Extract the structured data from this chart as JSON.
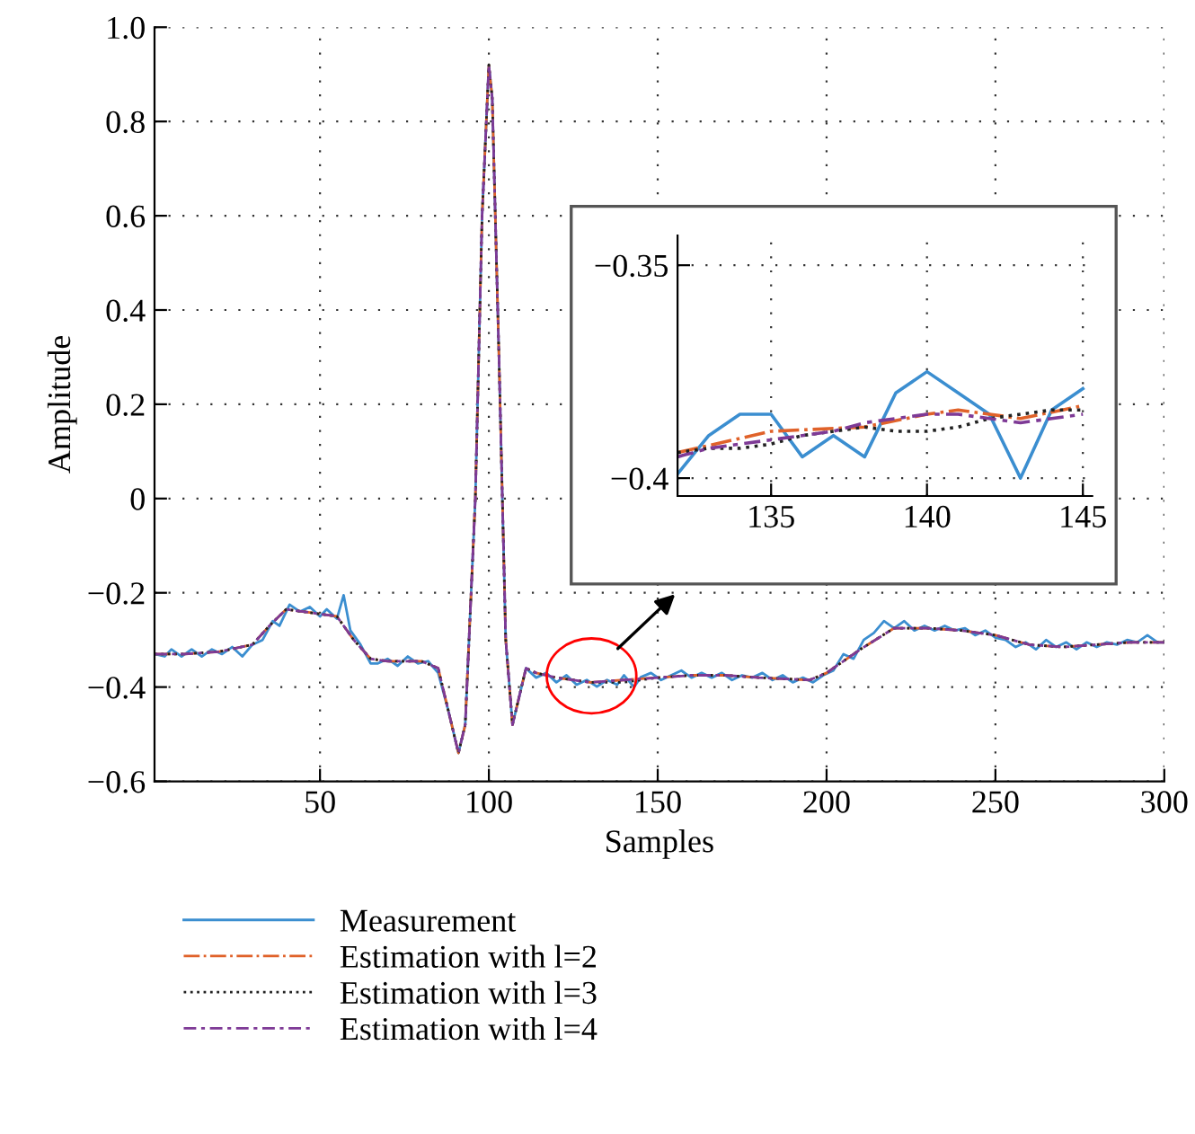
{
  "chart_data": [
    {
      "type": "line",
      "xlabel": "Samples",
      "ylabel": "Amplitude",
      "xlim": [
        1,
        300
      ],
      "ylim": [
        -0.6,
        1.0
      ],
      "xticks": [
        50,
        100,
        150,
        200,
        250,
        300
      ],
      "yticks": [
        {
          "value": -0.6,
          "label": "−0.6"
        },
        {
          "value": -0.4,
          "label": "−0.4"
        },
        {
          "value": -0.2,
          "label": "−0.2"
        },
        0,
        0.2,
        0.4,
        0.6,
        0.8,
        {
          "value": 1.0,
          "label": "1.0"
        }
      ],
      "grid": true,
      "legend": "bottom",
      "series": [
        {
          "name": "Measurement",
          "color": "#3b8ed0",
          "line_style": "solid",
          "x": [
            1,
            4,
            6,
            9,
            12,
            15,
            18,
            21,
            24,
            27,
            30,
            33,
            36,
            38,
            41,
            44,
            47,
            50,
            52,
            55,
            57,
            59,
            62,
            65,
            67,
            70,
            73,
            76,
            79,
            82,
            85,
            88,
            91,
            93,
            96,
            98,
            100,
            101,
            103,
            105,
            107,
            109,
            111,
            114,
            117,
            120,
            123,
            126,
            129,
            132,
            135,
            138,
            140,
            143,
            145,
            148,
            151,
            154,
            157,
            160,
            163,
            166,
            169,
            172,
            175,
            178,
            181,
            184,
            187,
            190,
            193,
            196,
            199,
            202,
            205,
            208,
            211,
            214,
            217,
            220,
            223,
            226,
            229,
            232,
            235,
            238,
            241,
            244,
            247,
            250,
            253,
            256,
            259,
            262,
            265,
            268,
            271,
            274,
            277,
            280,
            283,
            286,
            289,
            292,
            295,
            298,
            300
          ],
          "values": [
            -0.33,
            -0.335,
            -0.32,
            -0.335,
            -0.32,
            -0.335,
            -0.32,
            -0.33,
            -0.315,
            -0.335,
            -0.31,
            -0.3,
            -0.26,
            -0.27,
            -0.225,
            -0.24,
            -0.23,
            -0.25,
            -0.235,
            -0.255,
            -0.205,
            -0.28,
            -0.31,
            -0.35,
            -0.35,
            -0.34,
            -0.355,
            -0.335,
            -0.35,
            -0.345,
            -0.37,
            -0.45,
            -0.54,
            -0.48,
            0.0,
            0.6,
            0.92,
            0.85,
            0.3,
            -0.3,
            -0.48,
            -0.42,
            -0.36,
            -0.38,
            -0.37,
            -0.39,
            -0.375,
            -0.395,
            -0.385,
            -0.399,
            -0.385,
            -0.395,
            -0.375,
            -0.4,
            -0.379,
            -0.37,
            -0.385,
            -0.375,
            -0.365,
            -0.38,
            -0.37,
            -0.38,
            -0.37,
            -0.385,
            -0.375,
            -0.38,
            -0.37,
            -0.385,
            -0.375,
            -0.39,
            -0.38,
            -0.39,
            -0.375,
            -0.365,
            -0.33,
            -0.34,
            -0.3,
            -0.285,
            -0.26,
            -0.275,
            -0.26,
            -0.28,
            -0.27,
            -0.28,
            -0.27,
            -0.28,
            -0.275,
            -0.29,
            -0.28,
            -0.295,
            -0.3,
            -0.315,
            -0.305,
            -0.32,
            -0.3,
            -0.315,
            -0.305,
            -0.32,
            -0.305,
            -0.315,
            -0.305,
            -0.31,
            -0.3,
            -0.305,
            -0.29,
            -0.305,
            -0.305
          ]
        },
        {
          "name": "Estimation with l=2",
          "color": "#e0622a",
          "line_style": "dashdot",
          "x": [
            1,
            10,
            20,
            30,
            35,
            40,
            45,
            50,
            55,
            60,
            65,
            70,
            80,
            85,
            88,
            91,
            93,
            96,
            98,
            100,
            101,
            103,
            105,
            107,
            109,
            111,
            114,
            120,
            130,
            140,
            150,
            160,
            170,
            180,
            195,
            200,
            210,
            220,
            230,
            240,
            250,
            260,
            270,
            280,
            290,
            300
          ],
          "values": [
            -0.33,
            -0.33,
            -0.325,
            -0.31,
            -0.27,
            -0.235,
            -0.24,
            -0.245,
            -0.25,
            -0.3,
            -0.34,
            -0.345,
            -0.345,
            -0.36,
            -0.45,
            -0.54,
            -0.48,
            0.0,
            0.6,
            0.92,
            0.85,
            0.3,
            -0.3,
            -0.48,
            -0.42,
            -0.36,
            -0.37,
            -0.38,
            -0.39,
            -0.385,
            -0.38,
            -0.375,
            -0.375,
            -0.38,
            -0.385,
            -0.37,
            -0.32,
            -0.275,
            -0.275,
            -0.28,
            -0.29,
            -0.31,
            -0.315,
            -0.31,
            -0.305,
            -0.305
          ]
        },
        {
          "name": "Estimation with l=3",
          "color": "#222222",
          "line_style": "dotted",
          "x": [
            1,
            10,
            20,
            30,
            35,
            40,
            45,
            50,
            55,
            60,
            65,
            70,
            80,
            85,
            88,
            91,
            93,
            96,
            98,
            100,
            101,
            103,
            105,
            107,
            109,
            111,
            114,
            120,
            130,
            140,
            150,
            160,
            170,
            180,
            195,
            200,
            210,
            220,
            230,
            240,
            250,
            260,
            270,
            280,
            290,
            300
          ],
          "values": [
            -0.33,
            -0.33,
            -0.325,
            -0.31,
            -0.27,
            -0.235,
            -0.24,
            -0.245,
            -0.25,
            -0.3,
            -0.34,
            -0.345,
            -0.345,
            -0.36,
            -0.45,
            -0.54,
            -0.48,
            0.0,
            0.6,
            0.92,
            0.85,
            0.3,
            -0.3,
            -0.48,
            -0.42,
            -0.36,
            -0.37,
            -0.38,
            -0.39,
            -0.39,
            -0.38,
            -0.375,
            -0.375,
            -0.38,
            -0.385,
            -0.37,
            -0.32,
            -0.275,
            -0.275,
            -0.28,
            -0.29,
            -0.31,
            -0.315,
            -0.31,
            -0.305,
            -0.305
          ]
        },
        {
          "name": "Estimation with l=4",
          "color": "#7e3a96",
          "line_style": "dashed",
          "x": [
            1,
            10,
            20,
            30,
            35,
            40,
            45,
            50,
            55,
            60,
            65,
            70,
            80,
            85,
            88,
            91,
            93,
            96,
            98,
            100,
            101,
            103,
            105,
            107,
            109,
            111,
            114,
            120,
            130,
            140,
            150,
            160,
            170,
            180,
            195,
            200,
            210,
            220,
            230,
            240,
            250,
            260,
            270,
            280,
            290,
            300
          ],
          "values": [
            -0.33,
            -0.33,
            -0.325,
            -0.31,
            -0.27,
            -0.235,
            -0.24,
            -0.245,
            -0.25,
            -0.3,
            -0.34,
            -0.345,
            -0.345,
            -0.36,
            -0.45,
            -0.54,
            -0.48,
            0.0,
            0.6,
            0.92,
            0.85,
            0.3,
            -0.3,
            -0.48,
            -0.42,
            -0.36,
            -0.37,
            -0.38,
            -0.39,
            -0.385,
            -0.38,
            -0.375,
            -0.375,
            -0.38,
            -0.385,
            -0.37,
            -0.32,
            -0.275,
            -0.275,
            -0.28,
            -0.29,
            -0.31,
            -0.315,
            -0.31,
            -0.305,
            -0.305
          ]
        }
      ]
    },
    {
      "type": "line",
      "xlim": [
        132,
        145.3
      ],
      "ylim": [
        -0.4042,
        -0.343
      ],
      "xticks": [
        135,
        140,
        145
      ],
      "yticks": [
        {
          "value": -0.4,
          "label": "−0.4"
        },
        {
          "value": -0.35,
          "label": "−0.35"
        }
      ],
      "grid": true,
      "x": [
        132,
        133,
        134,
        135,
        136,
        137,
        138,
        139,
        140,
        141,
        142,
        143,
        144,
        145
      ],
      "series": [
        {
          "color": "#3b8ed0",
          "line_style": "solid",
          "values": [
            -0.399,
            -0.39,
            -0.385,
            -0.385,
            -0.395,
            -0.39,
            -0.395,
            -0.38,
            -0.375,
            -0.38,
            -0.385,
            -0.4,
            -0.384,
            -0.379
          ]
        },
        {
          "color": "#e0622a",
          "line_style": "dashdot",
          "x": [
            132,
            135,
            138,
            140,
            141,
            143,
            145
          ],
          "values": [
            -0.394,
            -0.389,
            -0.388,
            -0.385,
            -0.384,
            -0.386,
            -0.383
          ]
        },
        {
          "color": "#222222",
          "line_style": "dotted",
          "values": [
            -0.394,
            -0.393,
            -0.393,
            -0.392,
            -0.39,
            -0.389,
            -0.388,
            -0.389,
            -0.389,
            -0.388,
            -0.386,
            -0.385,
            -0.384,
            -0.384
          ]
        },
        {
          "color": "#7e3a96",
          "line_style": "dashed",
          "values": [
            -0.395,
            -0.393,
            -0.392,
            -0.391,
            -0.39,
            -0.389,
            -0.387,
            -0.386,
            -0.385,
            -0.385,
            -0.386,
            -0.387,
            -0.386,
            -0.385
          ]
        }
      ]
    }
  ]
}
